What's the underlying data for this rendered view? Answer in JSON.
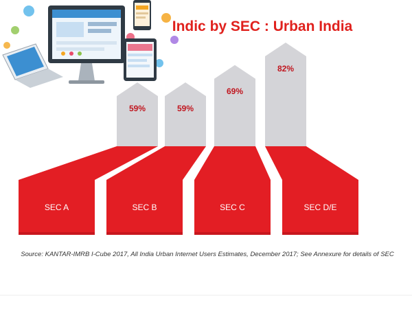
{
  "chart_data": {
    "type": "bar",
    "title": "Indic by SEC : Urban India",
    "categories": [
      "SEC A",
      "SEC B",
      "SEC C",
      "SEC D/E"
    ],
    "values": [
      59,
      59,
      69,
      82
    ],
    "value_labels": [
      "59%",
      "59%",
      "69%",
      "82%"
    ],
    "unit": "%",
    "ylim": [
      0,
      100
    ],
    "source": "Source: KANTAR-IMRB I-Cube 2017, All India Urban Internet Users Estimates, December 2017; See Annexure for details of SEC",
    "grid": false,
    "legend": "none"
  },
  "illustration": {
    "icon": "devices-illustration-icon"
  },
  "colors": {
    "title": "#e0211d",
    "bar_red": "#e31e24",
    "bar_red_dark": "#b5121b",
    "arrow_gray": "#d4d4d8",
    "value_label": "#c0161f",
    "category_label": "#ffffff",
    "source": "#333333"
  }
}
